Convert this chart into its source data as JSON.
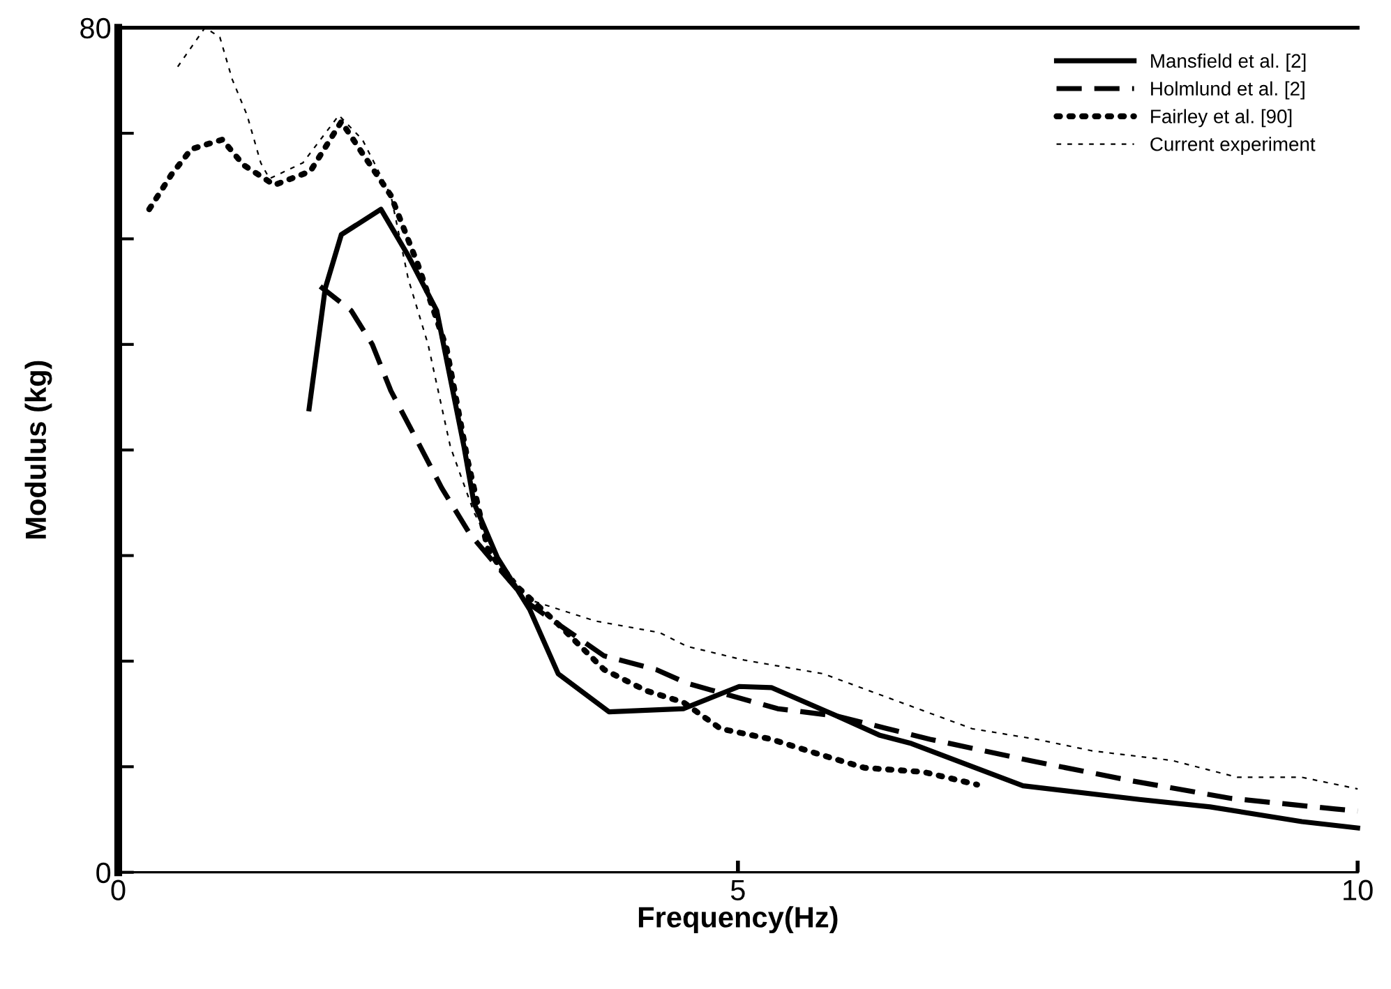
{
  "chart_data": {
    "type": "line",
    "xlabel": "Frequency(Hz)",
    "ylabel": "Modulus (kg)",
    "xlim": [
      0,
      10
    ],
    "xticks": [
      0,
      5,
      10
    ],
    "ylim": [
      0,
      80
    ],
    "yticks": [
      0,
      {
        "value": 10,
        "label": null
      },
      {
        "value": 20,
        "label": null
      },
      {
        "value": 30,
        "label": null
      },
      {
        "value": 40,
        "label": null
      },
      {
        "value": 50,
        "label": null
      },
      {
        "value": 60,
        "label": null
      },
      {
        "value": 70,
        "label": null
      },
      80
    ],
    "grid": false,
    "legend": "top right",
    "marker": "none",
    "series": [
      {
        "name": "Mansfield et al. [2]",
        "color": "#000000",
        "line_style": "solid",
        "x": [
          1.54,
          1.67,
          1.8,
          2.12,
          2.34,
          2.57,
          2.79,
          2.87,
          3.06,
          3.32,
          3.55,
          3.96,
          4.56,
          5.01,
          5.27,
          5.8,
          6.14,
          6.4,
          7.3,
          8.24,
          8.81,
          9.55,
          10
        ],
        "values": [
          43.9,
          55.3,
          60.4,
          62.8,
          58.4,
          53.2,
          40.3,
          35.0,
          29.8,
          24.9,
          18.8,
          15.2,
          15.5,
          17.6,
          17.5,
          14.8,
          13.0,
          12.2,
          8.2,
          6.9,
          6.2,
          4.8,
          4.2
        ]
      },
      {
        "name": "Holmlund et al. [2]",
        "color": "#000000",
        "line_style": "dashed",
        "x": [
          1.63,
          1.88,
          2.05,
          2.2,
          2.42,
          2.61,
          2.84,
          3.1,
          3.32,
          3.55,
          3.92,
          4.34,
          4.59,
          5.32,
          5.8,
          6.55,
          7.35,
          8.16,
          8.98,
          9.82,
          10
        ],
        "values": [
          55.5,
          53.2,
          50.0,
          45.6,
          40.7,
          36.4,
          32.0,
          28.4,
          25.4,
          23.5,
          20.5,
          19.2,
          17.9,
          15.5,
          14.8,
          12.6,
          10.6,
          8.7,
          7.0,
          6.0,
          5.8
        ]
      },
      {
        "name": "Fairley et al. [90]",
        "color": "#000000",
        "line_style": "dotted",
        "x": [
          0.25,
          0.43,
          0.59,
          0.84,
          1.01,
          1.26,
          1.55,
          1.8,
          1.97,
          2.2,
          2.42,
          2.65,
          2.82,
          2.98,
          3.13,
          3.55,
          3.92,
          4.26,
          4.56,
          4.86,
          5.27,
          5.65,
          6.02,
          6.5,
          6.93
        ],
        "values": [
          62.8,
          66.1,
          68.5,
          69.4,
          67.0,
          65.1,
          66.4,
          71.1,
          68.1,
          64.1,
          57.5,
          49.6,
          39.0,
          30.7,
          28.0,
          23.5,
          19.2,
          17.2,
          16.1,
          13.6,
          12.6,
          11.2,
          9.9,
          9.5,
          8.3
        ]
      },
      {
        "name": "Current experiment",
        "color": "#000000",
        "line_style": "dashed",
        "x": [
          0.48,
          0.7,
          0.82,
          0.92,
          1.04,
          1.15,
          1.22,
          1.49,
          1.78,
          1.97,
          2.2,
          2.34,
          2.5,
          2.68,
          2.87,
          3.06,
          3.32,
          3.85,
          4.37,
          4.59,
          5.05,
          5.69,
          6.22,
          6.89,
          7.41,
          7.86,
          8.5,
          9.03,
          9.55,
          10
        ],
        "values": [
          76.3,
          80.0,
          79.1,
          75.1,
          71.7,
          67.2,
          65.7,
          67.2,
          71.7,
          69.4,
          64.1,
          56.2,
          50.0,
          40.3,
          34.1,
          29.8,
          25.8,
          23.8,
          22.7,
          21.4,
          20.1,
          18.8,
          16.5,
          13.6,
          12.6,
          11.5,
          10.6,
          9.0,
          9.0,
          7.9
        ]
      }
    ]
  }
}
